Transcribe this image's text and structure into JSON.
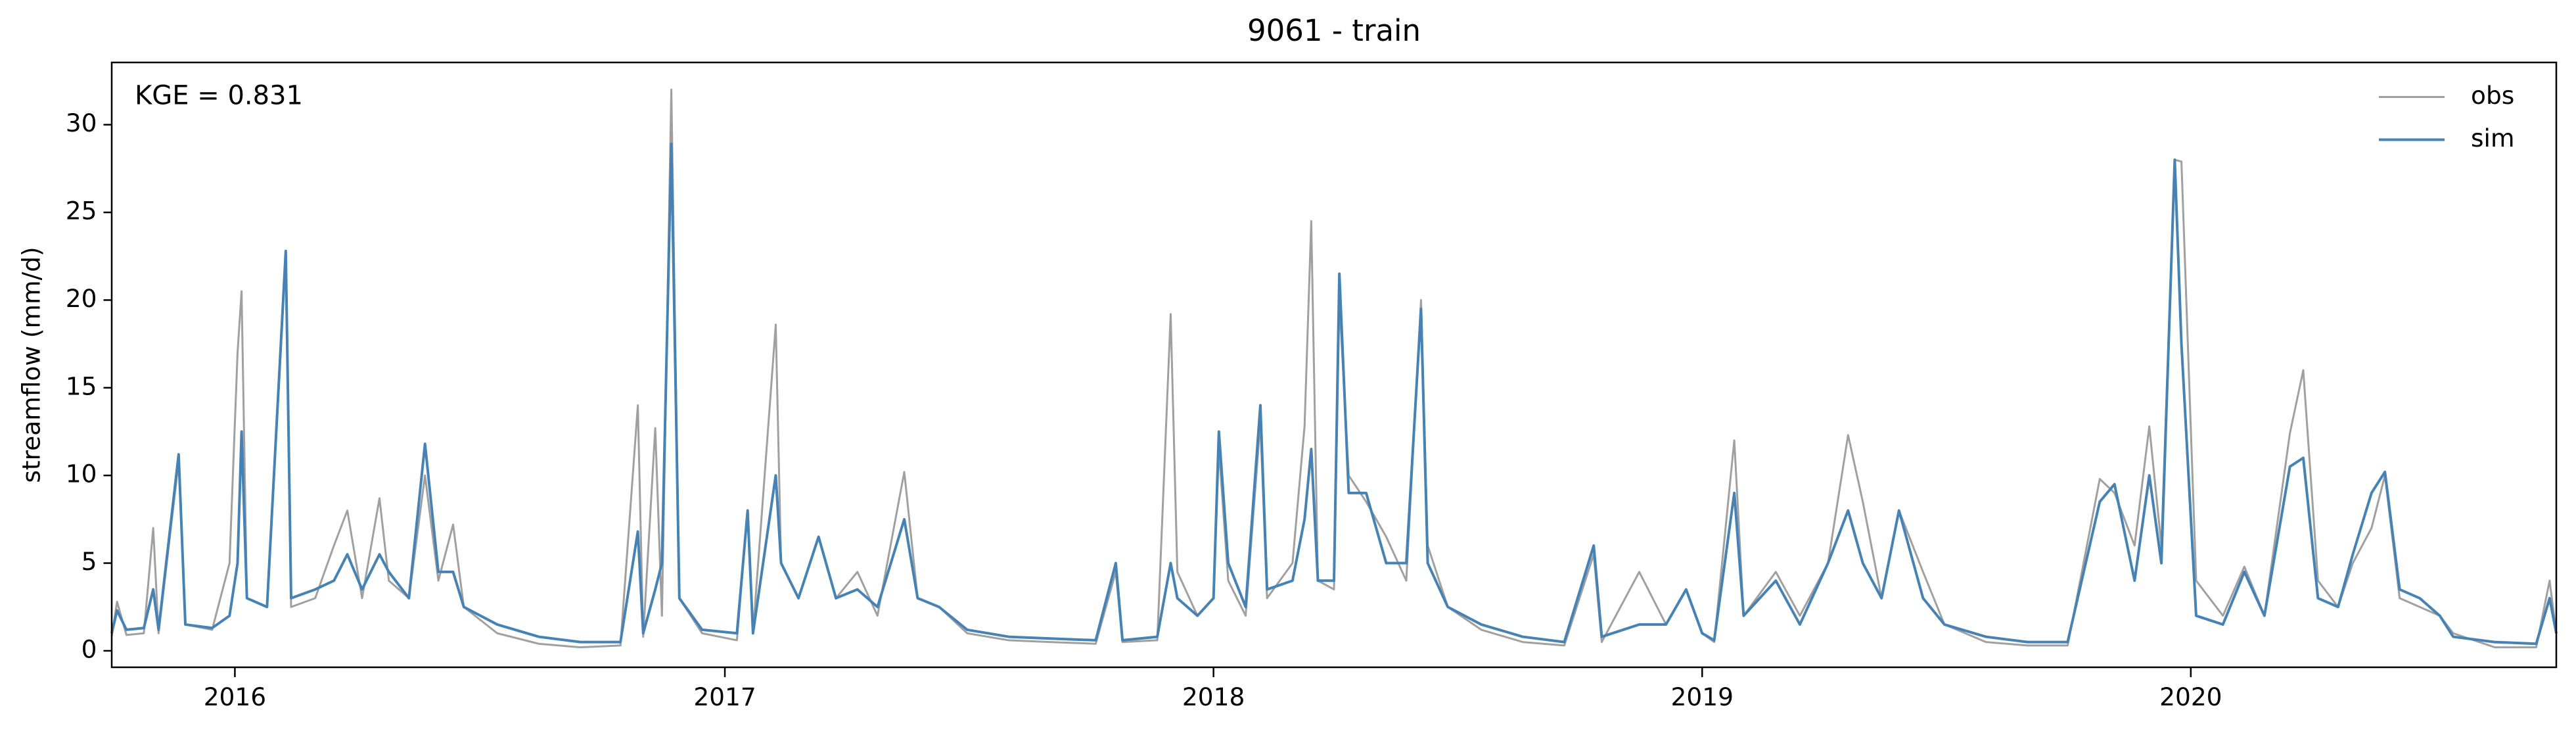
{
  "chart_data": {
    "type": "line",
    "title": "9061 - train",
    "ylabel": "streamflow (mm/d)",
    "annotation": "KGE = 0.831",
    "x": [
      "2015-10-01",
      "2015-10-05",
      "2015-10-12",
      "2015-10-25",
      "2015-11-01",
      "2015-11-05",
      "2015-11-20",
      "2015-11-25",
      "2015-12-15",
      "2015-12-28",
      "2016-01-03",
      "2016-01-06",
      "2016-01-10",
      "2016-01-25",
      "2016-02-08",
      "2016-02-12",
      "2016-03-01",
      "2016-03-15",
      "2016-03-25",
      "2016-04-05",
      "2016-04-18",
      "2016-04-25",
      "2016-05-10",
      "2016-05-22",
      "2016-06-01",
      "2016-06-12",
      "2016-06-20",
      "2016-07-15",
      "2016-08-15",
      "2016-09-15",
      "2016-10-15",
      "2016-10-28",
      "2016-11-01",
      "2016-11-10",
      "2016-11-15",
      "2016-11-22",
      "2016-11-28",
      "2016-12-15",
      "2017-01-10",
      "2017-01-18",
      "2017-01-22",
      "2017-02-08",
      "2017-02-12",
      "2017-02-25",
      "2017-03-12",
      "2017-03-25",
      "2017-04-10",
      "2017-04-25",
      "2017-05-15",
      "2017-05-25",
      "2017-06-10",
      "2017-07-01",
      "2017-08-01",
      "2017-09-01",
      "2017-10-05",
      "2017-10-20",
      "2017-10-25",
      "2017-11-20",
      "2017-11-30",
      "2017-12-05",
      "2017-12-20",
      "2018-01-01",
      "2018-01-05",
      "2018-01-12",
      "2018-01-25",
      "2018-02-05",
      "2018-02-10",
      "2018-03-01",
      "2018-03-10",
      "2018-03-15",
      "2018-03-20",
      "2018-04-01",
      "2018-04-05",
      "2018-04-12",
      "2018-04-25",
      "2018-05-10",
      "2018-05-25",
      "2018-06-05",
      "2018-06-10",
      "2018-06-25",
      "2018-07-20",
      "2018-08-20",
      "2018-09-20",
      "2018-10-12",
      "2018-10-18",
      "2018-11-15",
      "2018-12-05",
      "2018-12-20",
      "2019-01-01",
      "2019-01-10",
      "2019-01-25",
      "2019-02-01",
      "2019-02-25",
      "2019-03-15",
      "2019-04-05",
      "2019-04-20",
      "2019-05-01",
      "2019-05-15",
      "2019-05-28",
      "2019-06-15",
      "2019-07-01",
      "2019-08-01",
      "2019-09-01",
      "2019-10-01",
      "2019-10-25",
      "2019-11-05",
      "2019-11-20",
      "2019-12-01",
      "2019-12-10",
      "2019-12-20",
      "2019-12-25",
      "2020-01-05",
      "2020-01-25",
      "2020-02-10",
      "2020-02-25",
      "2020-03-15",
      "2020-03-25",
      "2020-04-05",
      "2020-04-20",
      "2020-05-01",
      "2020-05-15",
      "2020-05-25",
      "2020-06-05",
      "2020-06-20",
      "2020-07-05",
      "2020-07-15",
      "2020-08-15",
      "2020-09-15",
      "2020-09-25",
      "2020-09-30"
    ],
    "series": [
      {
        "name": "obs",
        "color": "#a0a0a0",
        "width": 1.2,
        "values": [
          0.8,
          2.8,
          0.9,
          1.0,
          7.0,
          1.0,
          10.8,
          1.5,
          1.2,
          5.0,
          17.0,
          20.5,
          3.0,
          2.5,
          22.5,
          2.5,
          3.0,
          6.0,
          8.0,
          3.0,
          8.7,
          4.0,
          3.0,
          10.0,
          4.0,
          7.2,
          2.5,
          1.0,
          0.4,
          0.2,
          0.3,
          14.0,
          0.8,
          12.7,
          2.0,
          32.0,
          3.0,
          1.0,
          0.6,
          8.0,
          1.0,
          18.6,
          5.0,
          3.0,
          6.5,
          3.0,
          4.5,
          2.0,
          10.2,
          3.0,
          2.5,
          1.0,
          0.6,
          0.5,
          0.4,
          4.5,
          0.5,
          0.6,
          19.2,
          4.5,
          2.0,
          3.0,
          11.5,
          4.0,
          2.0,
          13.0,
          3.0,
          5.0,
          12.8,
          24.5,
          4.0,
          3.5,
          20.0,
          10.0,
          8.5,
          6.5,
          4.0,
          20.0,
          6.0,
          2.5,
          1.2,
          0.5,
          0.3,
          5.5,
          0.5,
          4.5,
          1.5,
          3.5,
          1.0,
          0.5,
          12.0,
          2.0,
          4.5,
          2.0,
          5.0,
          12.3,
          8.5,
          3.0,
          8.0,
          4.5,
          1.5,
          0.5,
          0.3,
          0.3,
          9.8,
          9.0,
          6.0,
          12.8,
          6.0,
          28.0,
          27.9,
          4.0,
          2.0,
          4.8,
          2.0,
          12.4,
          16.0,
          4.0,
          2.5,
          5.0,
          7.0,
          10.0,
          3.0,
          2.5,
          2.0,
          1.0,
          0.2,
          0.2,
          4.0,
          1.0
        ]
      },
      {
        "name": "sim",
        "color": "#4682b4",
        "width": 1.6,
        "values": [
          1.0,
          2.3,
          1.2,
          1.3,
          3.5,
          1.2,
          11.2,
          1.5,
          1.3,
          2.0,
          5.0,
          12.5,
          3.0,
          2.5,
          22.8,
          3.0,
          3.5,
          4.0,
          5.5,
          3.5,
          5.5,
          4.5,
          3.0,
          11.8,
          4.5,
          4.5,
          2.5,
          1.5,
          0.8,
          0.5,
          0.5,
          6.8,
          1.0,
          3.5,
          5.0,
          28.9,
          3.0,
          1.2,
          1.0,
          8.0,
          1.0,
          10.0,
          5.0,
          3.0,
          6.5,
          3.0,
          3.5,
          2.5,
          7.5,
          3.0,
          2.5,
          1.2,
          0.8,
          0.7,
          0.6,
          5.0,
          0.6,
          0.8,
          5.0,
          3.0,
          2.0,
          3.0,
          12.5,
          5.0,
          2.5,
          14.0,
          3.5,
          4.0,
          7.5,
          11.5,
          4.0,
          4.0,
          21.5,
          9.0,
          9.0,
          5.0,
          5.0,
          19.5,
          5.0,
          2.5,
          1.5,
          0.8,
          0.5,
          6.0,
          0.8,
          1.5,
          1.5,
          3.5,
          1.0,
          0.6,
          9.0,
          2.0,
          4.0,
          1.5,
          5.0,
          8.0,
          5.0,
          3.0,
          8.0,
          3.0,
          1.5,
          0.8,
          0.5,
          0.5,
          8.5,
          9.5,
          4.0,
          10.0,
          5.0,
          28.0,
          17.5,
          2.0,
          1.5,
          4.5,
          2.0,
          10.5,
          11.0,
          3.0,
          2.5,
          5.5,
          9.0,
          10.2,
          3.5,
          3.0,
          2.0,
          0.8,
          0.5,
          0.4,
          3.0,
          1.0
        ]
      }
    ],
    "xlim": [
      "2015-10-01",
      "2020-09-30"
    ],
    "xticks": [
      {
        "value": "2016-01-01",
        "label": "2016"
      },
      {
        "value": "2017-01-01",
        "label": "2017"
      },
      {
        "value": "2018-01-01",
        "label": "2018"
      },
      {
        "value": "2019-01-01",
        "label": "2019"
      },
      {
        "value": "2020-01-01",
        "label": "2020"
      }
    ],
    "ylim": [
      -0.94,
      33.55
    ],
    "yticks": [
      0,
      5,
      10,
      15,
      20,
      25,
      30
    ],
    "grid": false,
    "legend": "upper right"
  }
}
